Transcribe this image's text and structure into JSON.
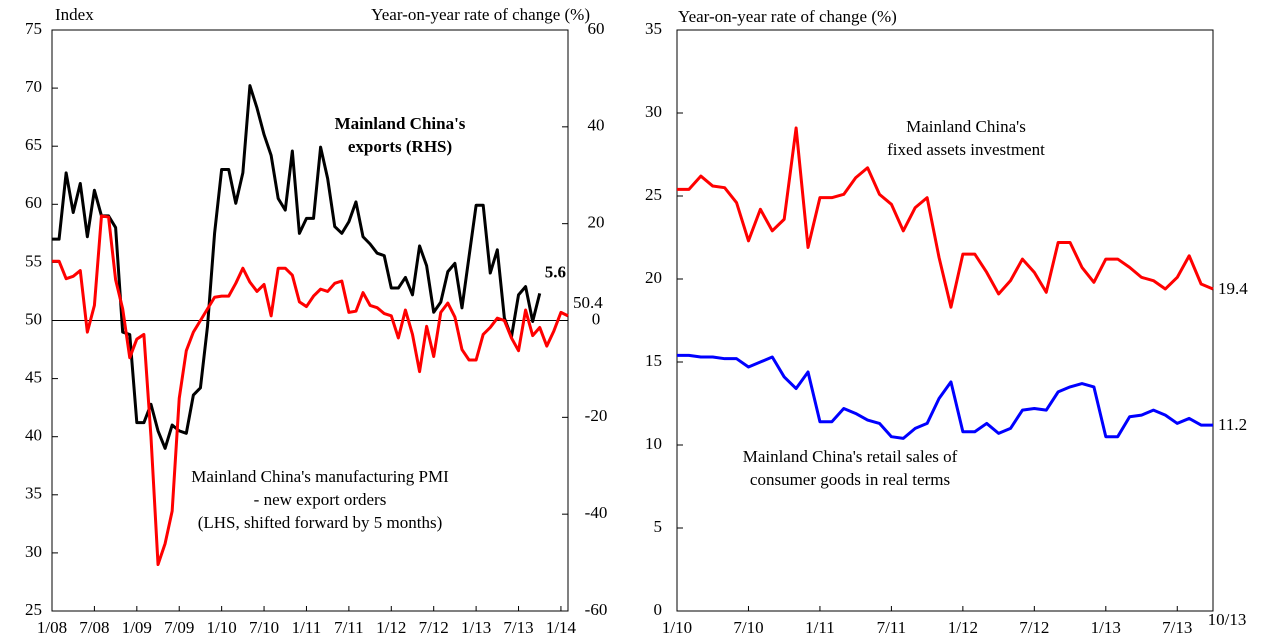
{
  "chart_data": [
    {
      "type": "line",
      "y_label": "Index",
      "y2_label": "Year-on-year rate of change (%)",
      "categories": [
        "1/08",
        null,
        null,
        null,
        null,
        null,
        "7/08",
        null,
        null,
        null,
        null,
        null,
        "1/09",
        null,
        null,
        null,
        null,
        null,
        "7/09",
        null,
        null,
        null,
        null,
        null,
        "1/10",
        null,
        null,
        null,
        null,
        null,
        "7/10",
        null,
        null,
        null,
        null,
        null,
        "1/11",
        null,
        null,
        null,
        null,
        null,
        "7/11",
        null,
        null,
        null,
        null,
        null,
        "1/12",
        null,
        null,
        null,
        null,
        null,
        "7/12",
        null,
        null,
        null,
        null,
        null,
        "1/13",
        null,
        null,
        null,
        null,
        null,
        "7/13",
        null,
        null,
        null,
        null,
        null,
        "1/14",
        null
      ],
      "series": [
        {
          "name": [
            "Mainland China's",
            "exports (RHS)"
          ],
          "color": "#000000",
          "name_color": "#000000",
          "axis": "y2",
          "values": [
            16.8,
            16.8,
            30.5,
            22.3,
            28.3,
            17.3,
            26.9,
            21.6,
            21.6,
            19.2,
            -2.4,
            -2.9,
            -21.1,
            -21.1,
            -17.3,
            -22.8,
            -26.4,
            -21.6,
            -22.8,
            -23.3,
            -15.4,
            -13.9,
            -1.2,
            18.0,
            31.2,
            31.2,
            24.2,
            30.5,
            48.5,
            43.9,
            38.4,
            34.1,
            25.2,
            22.8,
            35.0,
            18.0,
            21.1,
            21.1,
            35.8,
            29.3,
            19.4,
            18.0,
            20.4,
            24.5,
            17.3,
            15.8,
            13.9,
            13.4,
            6.7,
            6.7,
            8.9,
            5.3,
            15.4,
            11.3,
            1.7,
            3.8,
            10.1,
            11.8,
            2.6,
            13.2,
            23.8,
            23.8,
            9.8,
            14.6,
            0.5,
            -3.4,
            5.3,
            7.0,
            -0.2,
            5.6,
            null,
            null,
            null,
            null
          ]
        },
        {
          "name": [
            "Mainland China's manufacturing PMI",
            "- new export orders",
            "(LHS, shifted forward by 5 months)"
          ],
          "color": "#ff0000",
          "name_color": "#0000ff",
          "axis": "y",
          "values": [
            55.1,
            55.1,
            53.6,
            53.8,
            54.3,
            49.0,
            51.3,
            59.0,
            58.9,
            53.5,
            51.0,
            46.8,
            48.4,
            48.8,
            40.0,
            29.0,
            30.8,
            33.6,
            43.3,
            47.4,
            49.0,
            50.0,
            51.0,
            52.0,
            52.1,
            52.1,
            53.2,
            54.5,
            53.3,
            52.5,
            53.1,
            50.4,
            54.5,
            54.5,
            53.9,
            51.6,
            51.2,
            52.1,
            52.7,
            52.5,
            53.2,
            53.4,
            50.7,
            50.8,
            52.4,
            51.3,
            51.1,
            50.6,
            50.4,
            48.5,
            50.9,
            48.8,
            45.6,
            49.5,
            46.9,
            50.7,
            51.5,
            50.3,
            47.5,
            46.6,
            46.6,
            48.8,
            49.4,
            50.2,
            50.0,
            48.5,
            47.4,
            50.9,
            48.7,
            49.4,
            47.8,
            49.1,
            50.7,
            50.4
          ]
        }
      ],
      "ylim": [
        25,
        75
      ],
      "yticks": [
        25,
        30,
        35,
        40,
        45,
        50,
        55,
        60,
        65,
        70,
        75
      ],
      "y2lim": [
        -60,
        60
      ],
      "y2ticks": [
        -60,
        -40,
        -20,
        0,
        20,
        40,
        60
      ],
      "zero_line": true
    },
    {
      "type": "line",
      "y_label": "Year-on-year rate of change (%)",
      "categories": [
        "1/10",
        null,
        null,
        null,
        null,
        null,
        "7/10",
        null,
        null,
        null,
        null,
        null,
        "1/11",
        null,
        null,
        null,
        null,
        null,
        "7/11",
        null,
        null,
        null,
        null,
        null,
        "1/12",
        null,
        null,
        null,
        null,
        null,
        "7/12",
        null,
        null,
        null,
        null,
        null,
        "1/13",
        null,
        null,
        null,
        null,
        null,
        "7/13",
        null,
        null,
        "10/13"
      ],
      "series": [
        {
          "name": [
            "Mainland China's",
            "fixed assets investment"
          ],
          "color": "#ff0000",
          "name_color": "#ff0000",
          "values": [
            25.4,
            25.4,
            26.2,
            25.6,
            25.5,
            24.6,
            22.3,
            24.2,
            22.9,
            23.6,
            29.1,
            21.9,
            24.9,
            24.9,
            25.1,
            26.1,
            26.7,
            25.1,
            24.5,
            22.9,
            24.3,
            24.9,
            21.3,
            18.3,
            21.5,
            21.5,
            20.4,
            19.1,
            19.9,
            21.2,
            20.4,
            19.2,
            22.2,
            22.2,
            20.7,
            19.8,
            21.2,
            21.2,
            20.7,
            20.1,
            19.9,
            19.4,
            20.1,
            21.4,
            19.7,
            19.4
          ]
        },
        {
          "name": [
            "Mainland China's retail sales of",
            "consumer goods in real terms"
          ],
          "color": "#0000ff",
          "name_color": "#0000ff",
          "values": [
            15.4,
            15.4,
            15.3,
            15.3,
            15.2,
            15.2,
            14.7,
            15.0,
            15.3,
            14.1,
            13.4,
            14.4,
            11.4,
            11.4,
            12.2,
            11.9,
            11.5,
            11.3,
            10.5,
            10.4,
            11.0,
            11.3,
            12.8,
            13.8,
            10.8,
            10.8,
            11.3,
            10.7,
            11.0,
            12.1,
            12.2,
            12.1,
            13.2,
            13.5,
            13.7,
            13.5,
            10.5,
            10.5,
            11.7,
            11.8,
            12.1,
            11.8,
            11.3,
            11.6,
            11.2,
            11.2
          ]
        }
      ],
      "ylim": [
        0,
        35
      ],
      "yticks": [
        0,
        5,
        10,
        15,
        20,
        25,
        30,
        35
      ]
    }
  ]
}
